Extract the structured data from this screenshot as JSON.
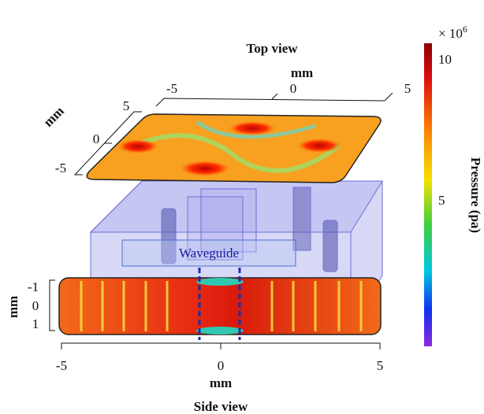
{
  "top_view": {
    "title": "Top view",
    "x_axis": {
      "label": "mm",
      "ticks": [
        "-5",
        "0",
        "5"
      ]
    },
    "y_axis": {
      "label": "mm",
      "ticks": [
        "5",
        "0",
        "-5"
      ]
    }
  },
  "waveguide": {
    "label": "Waveguide"
  },
  "side_view": {
    "title": "Side view",
    "x_axis": {
      "label": "mm",
      "ticks": [
        "-5",
        "0",
        "5"
      ]
    },
    "y_axis": {
      "label": "mm",
      "ticks": [
        "-1",
        "0",
        "1"
      ]
    }
  },
  "colorbar": {
    "label": "Pressure (pa)",
    "multiplier": "× 10",
    "exponent": "6",
    "ticks": [
      "10",
      "5"
    ]
  }
}
